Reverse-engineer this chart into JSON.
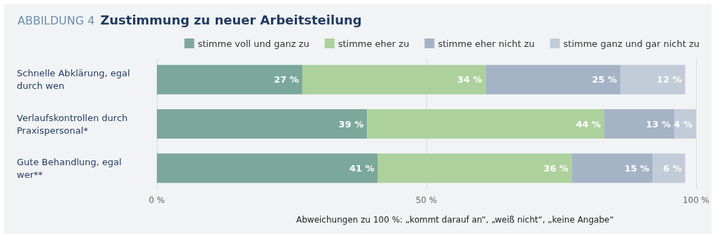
{
  "chart_data": {
    "type": "bar",
    "orientation": "horizontal",
    "stacked": true,
    "subtitle": "ABBILDUNG 4",
    "title": "Zustimmung zu neuer Arbeitsteilung",
    "categories": [
      "Schnelle Abklärung, egal durch wen",
      "Verlaufskontrollen durch Praxispersonal*",
      "Gute Behandlung, egal wer**"
    ],
    "series": [
      {
        "name": "stimme voll und ganz zu",
        "color": "#7ba89a",
        "values": [
          27,
          39,
          41
        ],
        "value_labels": [
          "27 %",
          "39 %",
          "41 %"
        ]
      },
      {
        "name": "stimme eher zu",
        "color": "#add19d",
        "values": [
          34,
          44,
          36
        ],
        "value_labels": [
          "34 %",
          "44 %",
          "36 %"
        ]
      },
      {
        "name": "stimme eher nicht zu",
        "color": "#a5b3c6",
        "values": [
          25,
          13,
          15
        ],
        "value_labels": [
          "25 %",
          "13 %",
          "15 %"
        ]
      },
      {
        "name": "stimme ganz und gar nicht zu",
        "color": "#c2cbd8",
        "values": [
          12,
          4,
          6
        ],
        "value_labels": [
          "12 %",
          "4 %",
          "6 %"
        ]
      }
    ],
    "xlim": [
      0,
      100
    ],
    "xticks": [
      {
        "value": 0,
        "label": "0 %"
      },
      {
        "value": 50,
        "label": "50 %"
      },
      {
        "value": 100,
        "label": "100 %"
      }
    ],
    "grid": "x",
    "legend": "top right",
    "annotations": [
      "Abweichungen zu 100 %: „kommt darauf an“, „weiß nicht“, „keine Angabe“"
    ]
  }
}
